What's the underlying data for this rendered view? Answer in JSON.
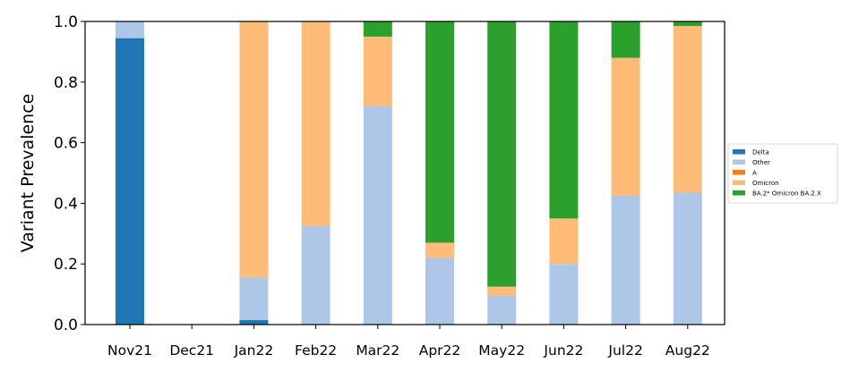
{
  "chart_data": {
    "type": "bar",
    "stacked": true,
    "categories": [
      "Nov21",
      "Dec21",
      "Jan22",
      "Feb22",
      "Mar22",
      "Apr22",
      "May22",
      "Jun22",
      "Jul22",
      "Aug22"
    ],
    "series": [
      {
        "name": "Delta",
        "color": "#1f77b4",
        "values": [
          0.945,
          0,
          0.015,
          0,
          0,
          0,
          0,
          0,
          0,
          0
        ]
      },
      {
        "name": "Other",
        "color": "#aec7e8",
        "values": [
          0.055,
          0,
          0.14,
          0.325,
          0.72,
          0.22,
          0.095,
          0.2,
          0.425,
          0.435
        ]
      },
      {
        "name": "A",
        "color": "#ff7f0e",
        "values": [
          0,
          0,
          0,
          0,
          0,
          0,
          0,
          0,
          0,
          0
        ]
      },
      {
        "name": "Omicron",
        "color": "#ffbb78",
        "values": [
          0,
          0,
          0.845,
          0.675,
          0.23,
          0.05,
          0.03,
          0.15,
          0.455,
          0.55
        ]
      },
      {
        "name": "BA.2* Omicron BA.2.X",
        "color": "#2ca02c",
        "values": [
          0,
          0,
          0,
          0,
          0.05,
          0.73,
          0.875,
          0.65,
          0.12,
          0.015
        ]
      }
    ],
    "ylabel": "Variant Prevalence",
    "xlabel": "",
    "ylim": [
      0,
      1.0
    ],
    "yticks": [
      "0.0",
      "0.2",
      "0.4",
      "0.6",
      "0.8",
      "1.0"
    ],
    "grid": false,
    "legend_position": "right"
  }
}
